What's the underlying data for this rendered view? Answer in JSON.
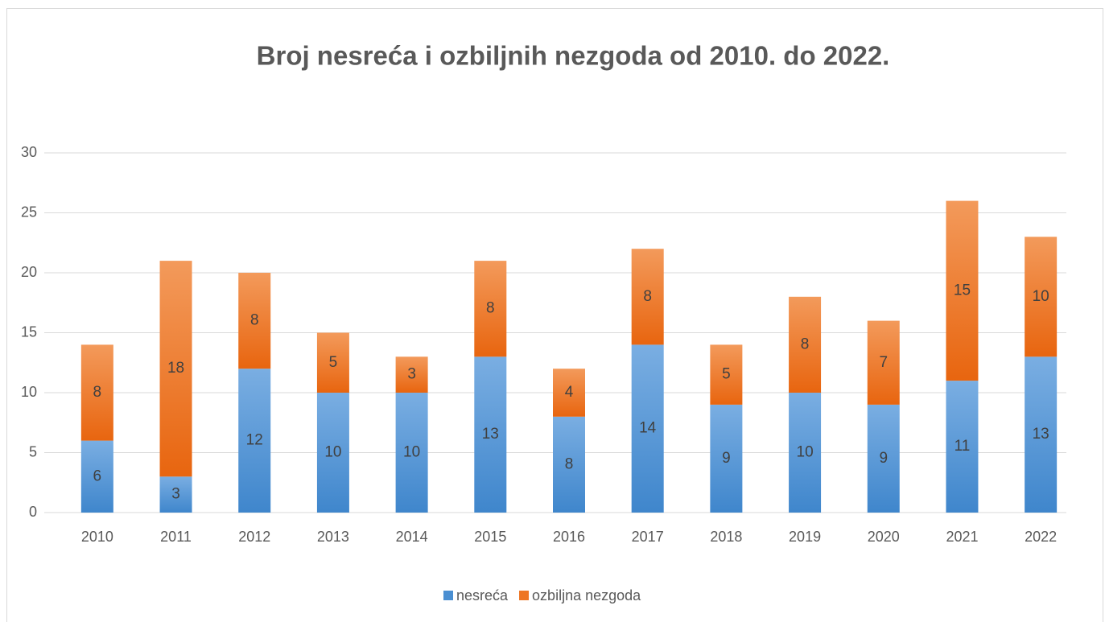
{
  "chart_data": {
    "type": "stacked_bar",
    "title": "Broj nesreća i ozbiljnih nezgoda od 2010. do 2022.",
    "categories": [
      "2010",
      "2011",
      "2012",
      "2013",
      "2014",
      "2015",
      "2016",
      "2017",
      "2018",
      "2019",
      "2020",
      "2021",
      "2022"
    ],
    "series": [
      {
        "name": "nesreća",
        "color": "#4a8fd2",
        "values": [
          6,
          3,
          12,
          10,
          10,
          13,
          8,
          14,
          9,
          10,
          9,
          11,
          13
        ]
      },
      {
        "name": "ozbiljna nezgoda",
        "color": "#ee7522",
        "values": [
          8,
          18,
          8,
          5,
          3,
          8,
          4,
          8,
          5,
          8,
          7,
          15,
          10
        ]
      }
    ],
    "ylim": [
      0,
      30
    ],
    "yticks": [
      0,
      5,
      10,
      15,
      20,
      25,
      30
    ],
    "grid": true,
    "legend": "bottom"
  }
}
